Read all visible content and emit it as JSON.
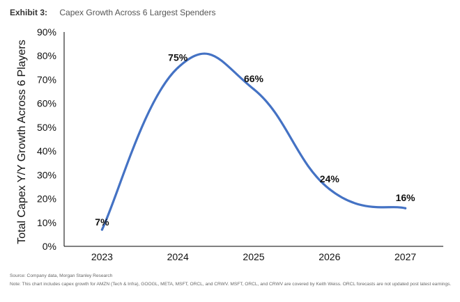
{
  "header": {
    "exhibit_label": "Exhibit 3:",
    "title": "Capex Growth Across 6 Largest Spenders"
  },
  "footer": {
    "source": "Source: Company data, Morgan Stanley Research",
    "note": "Note: This chart includes capex growth for AMZN (Tech & Infra), GOOGL, META, MSFT, ORCL, and CRWV. MSFT, ORCL, and CRWV are covered by Keith Weiss. ORCL forecasts are not updated post latest earnings."
  },
  "chart_data": {
    "type": "line",
    "title": "Capex Growth Across 6 Largest Spenders",
    "xlabel": "",
    "ylabel": "Total Capex Y/Y Growth Across 6 Players",
    "categories": [
      "2023",
      "2024",
      "2025",
      "2026",
      "2027"
    ],
    "series": [
      {
        "values": [
          7,
          75,
          66,
          24,
          16
        ],
        "data_labels": [
          "7%",
          "75%",
          "66%",
          "24%",
          "16%"
        ]
      }
    ],
    "ylim": [
      0,
      90
    ],
    "yticks": [
      "0%",
      "10%",
      "20%",
      "30%",
      "40%",
      "50%",
      "60%",
      "70%",
      "80%",
      "90%"
    ],
    "line_color": "#4472c4",
    "grid": false,
    "legend": "none"
  }
}
